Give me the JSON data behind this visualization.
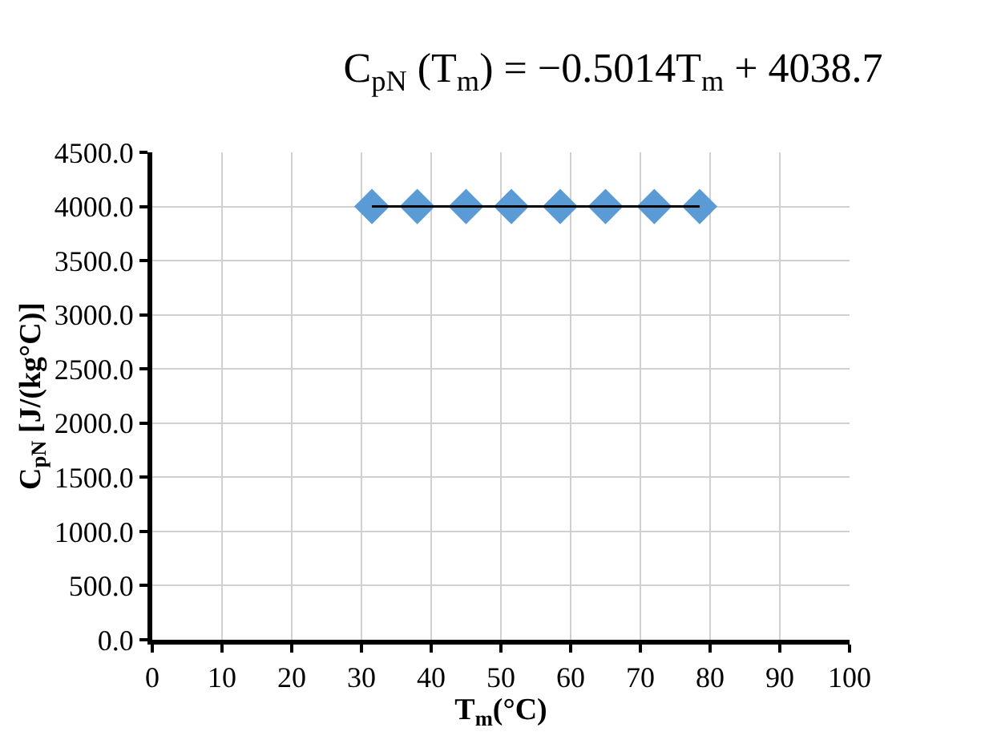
{
  "chart_data": {
    "type": "scatter",
    "title": "C$_{pN}$ (T$_{m}$) = −0.5014T$_{m}$ + 4038.7",
    "xlabel": "T$_{m}$(°C)",
    "ylabel": "C$_{pN}$ [J/(kg°C)]",
    "series": [
      {
        "color": "#5b9bd5",
        "marker": "diamond",
        "x": [
          31.5,
          38,
          45,
          51.5,
          58.5,
          65,
          72,
          78.5
        ],
        "values": [
          4000,
          4000,
          4000,
          4000,
          4000,
          4000,
          4000,
          4000
        ]
      },
      {
        "type": "line",
        "color": "#000000",
        "marker": "none",
        "x": [
          31.5,
          78.5
        ],
        "values": [
          4000,
          4000
        ]
      }
    ],
    "xlim": [
      0,
      100
    ],
    "xticks": [
      0,
      10,
      20,
      30,
      40,
      50,
      60,
      70,
      80,
      90,
      100
    ],
    "ylim": [
      0,
      4500
    ],
    "yticks": [
      {
        "value": 0,
        "label": "0.0"
      },
      {
        "value": 500,
        "label": "500.0"
      },
      {
        "value": 1000,
        "label": "1000.0"
      },
      {
        "value": 1500,
        "label": "1500.0"
      },
      {
        "value": 2000,
        "label": "2000.0"
      },
      {
        "value": 2500,
        "label": "2500.0"
      },
      {
        "value": 3000,
        "label": "3000.0"
      },
      {
        "value": 3500,
        "label": "3500.0"
      },
      {
        "value": 4000,
        "label": "4000.0"
      },
      {
        "value": 4500,
        "label": "4500.0"
      }
    ],
    "grid": true
  }
}
